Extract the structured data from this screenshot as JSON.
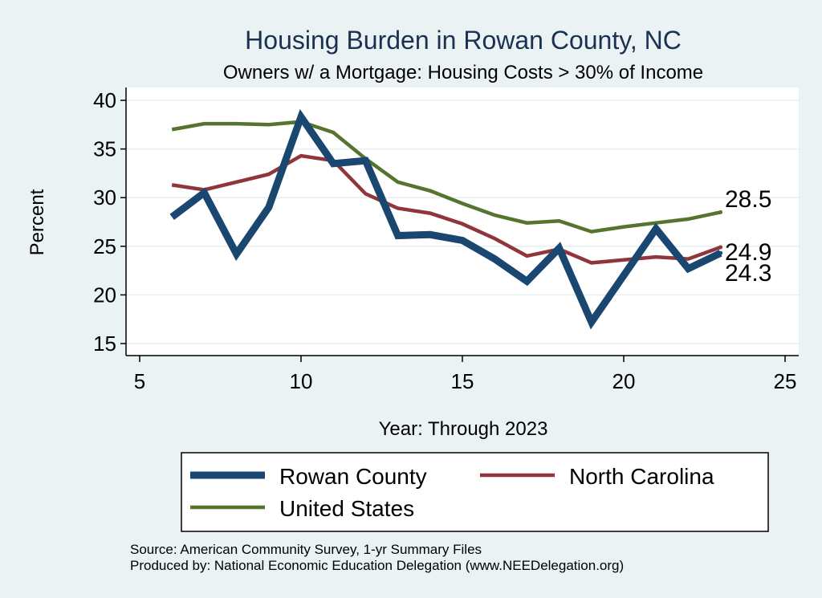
{
  "chart_data": {
    "type": "line",
    "title": "Housing Burden in Rowan County, NC",
    "subtitle": "Owners w/ a Mortgage: Housing Costs > 30% of Income",
    "xlabel": "Year: Through 2023",
    "ylabel": "Percent",
    "xlim": [
      5,
      25
    ],
    "ylim": [
      14,
      40.5
    ],
    "xticks": [
      5,
      10,
      15,
      20,
      25
    ],
    "yticks": [
      15,
      20,
      25,
      30,
      35,
      40
    ],
    "grid": true,
    "series": [
      {
        "name": "Rowan County",
        "color": "#1a476f",
        "x": [
          6,
          7,
          8,
          9,
          10,
          11,
          12,
          13,
          14,
          15,
          16,
          17,
          18,
          19,
          20,
          21,
          22,
          23
        ],
        "values": [
          28.0,
          30.5,
          24.2,
          29.0,
          38.3,
          33.5,
          33.8,
          26.1,
          26.2,
          25.6,
          23.7,
          21.4,
          24.8,
          17.2,
          22.0,
          26.8,
          22.7,
          24.3
        ],
        "end_label": "24.3"
      },
      {
        "name": "North Carolina",
        "color": "#90353b",
        "x": [
          6,
          7,
          8,
          9,
          10,
          11,
          12,
          13,
          14,
          15,
          16,
          17,
          18,
          19,
          20,
          21,
          22,
          23
        ],
        "values": [
          31.3,
          30.8,
          31.6,
          32.4,
          34.3,
          33.8,
          30.4,
          28.9,
          28.4,
          27.3,
          25.8,
          24.0,
          24.7,
          23.3,
          23.6,
          23.9,
          23.7,
          24.9
        ],
        "end_label": "24.9"
      },
      {
        "name": "United States",
        "color": "#55752f",
        "x": [
          6,
          7,
          8,
          9,
          10,
          11,
          12,
          13,
          14,
          15,
          16,
          17,
          18,
          19,
          20,
          21,
          22,
          23
        ],
        "values": [
          37.0,
          37.6,
          37.6,
          37.5,
          37.8,
          36.7,
          34.0,
          31.6,
          30.7,
          29.4,
          28.2,
          27.4,
          27.6,
          26.5,
          27.0,
          27.4,
          27.8,
          28.5
        ],
        "end_label": "28.5"
      }
    ],
    "legend": {
      "position": "bottom",
      "entries": [
        "Rowan County",
        "North Carolina",
        "United States"
      ]
    },
    "notes": [
      "Source: American Community Survey, 1-yr Summary Files",
      "Produced by: National Economic Education Delegation (www.NEEDelegation.org)"
    ]
  },
  "colors": {
    "background": "#eaf2f3",
    "plot_background": "#ffffff",
    "title": "#1a3151",
    "grid": "#e8eff0"
  }
}
